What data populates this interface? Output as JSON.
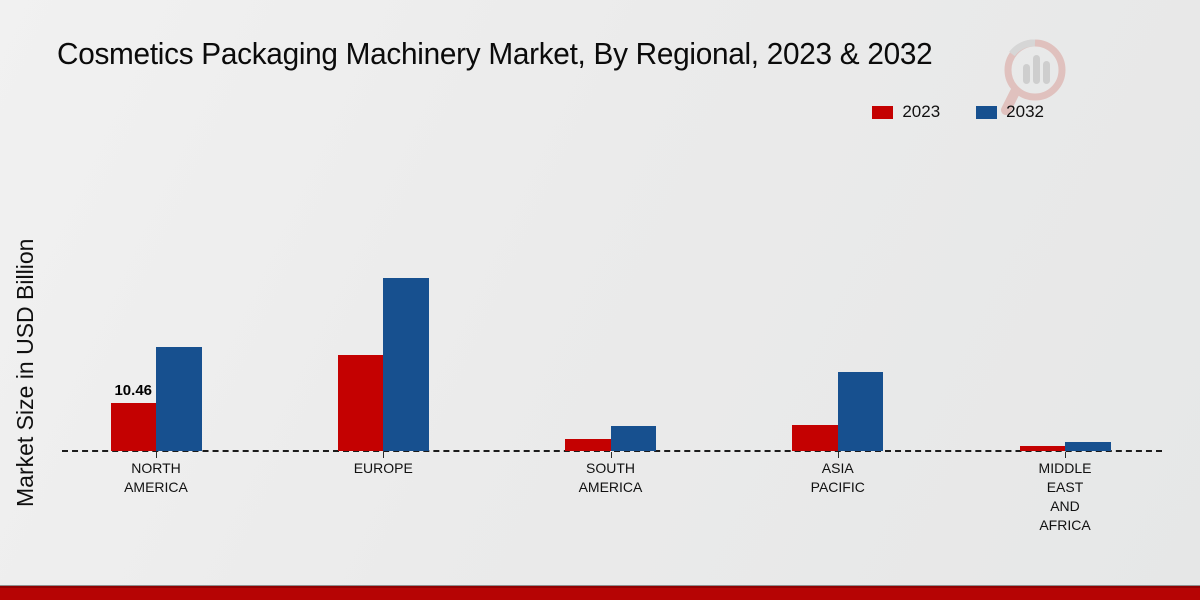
{
  "title": "Cosmetics Packaging Machinery Market, By Regional, 2023 & 2032",
  "watermark_icon": "market-research-magnifier-logo",
  "footer": {
    "bar_color": "#b60404"
  },
  "chart_data": {
    "type": "bar",
    "title": "Cosmetics Packaging Machinery Market, By Regional, 2023 & 2032",
    "categories": [
      "NORTH AMERICA",
      "EUROPE",
      "SOUTH AMERICA",
      "ASIA PACIFIC",
      "MIDDLE EAST AND AFRICA"
    ],
    "category_lines": [
      [
        "NORTH",
        "AMERICA"
      ],
      [
        "EUROPE"
      ],
      [
        "SOUTH",
        "AMERICA"
      ],
      [
        "ASIA",
        "PACIFIC"
      ],
      [
        "MIDDLE",
        "EAST",
        "AND",
        "AFRICA"
      ]
    ],
    "series": [
      {
        "name": "2023",
        "color": "#c40101",
        "values": [
          10.46,
          20.7,
          2.5,
          5.7,
          1.1
        ],
        "value_labels": [
          "10.46",
          "",
          "",
          "",
          ""
        ]
      },
      {
        "name": "2032",
        "color": "#17508f",
        "values": [
          22.5,
          37.5,
          5.4,
          17.2,
          1.9
        ],
        "value_labels": [
          "",
          "",
          "",
          "",
          ""
        ]
      }
    ],
    "xlabel": "",
    "ylabel": "Market Size in USD Billion",
    "ylim": [
      0,
      63
    ],
    "grid": false,
    "baseline_style": "dashed",
    "legend_position": "top-right",
    "value_axis_ticks_visible": false
  }
}
